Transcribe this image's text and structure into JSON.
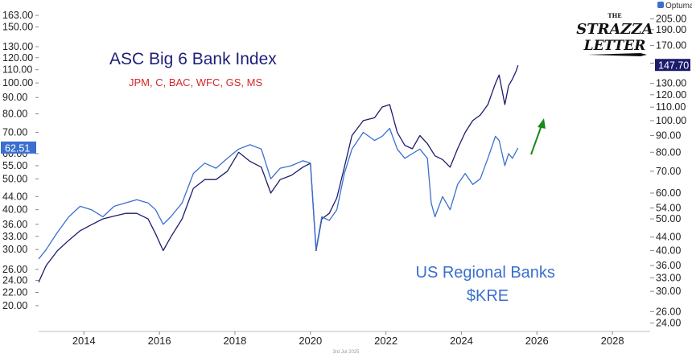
{
  "chart_data": {
    "type": "line",
    "title": "ASC Big 6 Bank Index",
    "subtitle": "JPM, C, BAC, WFC, GS, MS",
    "annotation": "US Regional Banks\n$KRE",
    "brand": "Optuma",
    "logo": "THE STRAZZA LETTER",
    "footer_date": "3rd Jul 2025",
    "scale": "log",
    "grid": false,
    "xlim": [
      2012.8,
      2029.0
    ],
    "x_ticks": [
      "2014",
      "2016",
      "2018",
      "2020",
      "2022",
      "2024",
      "2026",
      "2028"
    ],
    "x_tick_values": [
      2014,
      2016,
      2018,
      2020,
      2022,
      2024,
      2026,
      2028
    ],
    "left_axis": {
      "ylim": [
        18.0,
        165.0
      ],
      "ticks": [
        "163.00",
        "150.00",
        "130.00",
        "120.00",
        "110.00",
        "100.00",
        "90.00",
        "80.00",
        "70.00",
        "60.00",
        "55.00",
        "50.00",
        "44.00",
        "40.00",
        "36.00",
        "33.00",
        "30.00",
        "26.00",
        "24.00",
        "22.00",
        "20.00"
      ],
      "last_value_label": "62.51"
    },
    "right_axis": {
      "ylim": [
        23.0,
        215.0
      ],
      "ticks": [
        "205.00",
        "190.00",
        "170.00",
        "150.00",
        "130.00",
        "120.00",
        "110.00",
        "100.00",
        "90.00",
        "80.00",
        "70.00",
        "60.00",
        "54.00",
        "50.00",
        "44.00",
        "40.00",
        "36.00",
        "33.00",
        "30.00",
        "26.00",
        "24.00"
      ],
      "last_value_label": "147.70"
    },
    "colors": {
      "big6": "#1c1c6e",
      "kre": "#3a6fcf",
      "arrow": "#1a8a1a",
      "subtitle": "#d62728",
      "badge_left": "#3a6fcf",
      "badge_right": "#1c1c6e"
    },
    "series": [
      {
        "name": "ASC Big 6 Bank Index",
        "axis": "right",
        "x": [
          2012.8,
          2013.0,
          2013.3,
          2013.6,
          2013.9,
          2014.2,
          2014.5,
          2014.8,
          2015.1,
          2015.4,
          2015.7,
          2015.9,
          2016.1,
          2016.3,
          2016.6,
          2016.9,
          2017.2,
          2017.5,
          2017.8,
          2018.1,
          2018.4,
          2018.7,
          2018.95,
          2019.2,
          2019.5,
          2019.8,
          2020.0,
          2020.15,
          2020.3,
          2020.5,
          2020.7,
          2020.9,
          2021.1,
          2021.4,
          2021.7,
          2021.9,
          2022.1,
          2022.3,
          2022.5,
          2022.7,
          2022.9,
          2023.1,
          2023.3,
          2023.5,
          2023.7,
          2023.9,
          2024.1,
          2024.3,
          2024.5,
          2024.7,
          2024.9,
          2025.0,
          2025.15,
          2025.25,
          2025.35,
          2025.45,
          2025.5
        ],
        "y": [
          32.0,
          36.0,
          40.0,
          43.0,
          46.0,
          48.0,
          50.0,
          51.0,
          52.0,
          52.0,
          50.0,
          45.0,
          40.0,
          44.0,
          50.0,
          62.0,
          66.0,
          66.0,
          70.0,
          80.0,
          75.0,
          72.0,
          60.0,
          66.0,
          68.0,
          72.0,
          74.0,
          40.0,
          50.0,
          52.0,
          58.0,
          72.0,
          90.0,
          100.0,
          102.0,
          110.0,
          112.0,
          92.0,
          84.0,
          82.0,
          90.0,
          85.0,
          78.0,
          76.0,
          72.0,
          82.0,
          92.0,
          100.0,
          104.0,
          112.0,
          130.0,
          138.0,
          112.0,
          128.0,
          134.0,
          142.0,
          147.7
        ]
      },
      {
        "name": "US Regional Banks $KRE",
        "axis": "left",
        "x": [
          2012.8,
          2013.0,
          2013.3,
          2013.6,
          2013.9,
          2014.2,
          2014.5,
          2014.8,
          2015.1,
          2015.4,
          2015.7,
          2015.9,
          2016.1,
          2016.3,
          2016.6,
          2016.9,
          2017.2,
          2017.5,
          2017.8,
          2018.1,
          2018.4,
          2018.7,
          2018.95,
          2019.2,
          2019.5,
          2019.8,
          2020.0,
          2020.15,
          2020.3,
          2020.5,
          2020.7,
          2020.9,
          2021.1,
          2021.4,
          2021.7,
          2021.9,
          2022.1,
          2022.3,
          2022.5,
          2022.7,
          2022.9,
          2023.1,
          2023.2,
          2023.3,
          2023.5,
          2023.7,
          2023.9,
          2024.1,
          2024.3,
          2024.5,
          2024.7,
          2024.9,
          2025.0,
          2025.15,
          2025.25,
          2025.35,
          2025.45,
          2025.5
        ],
        "y": [
          28.0,
          30.0,
          34.0,
          38.0,
          41.0,
          40.0,
          38.0,
          41.0,
          42.0,
          43.0,
          42.0,
          40.0,
          36.0,
          38.0,
          42.0,
          52.0,
          56.0,
          54.0,
          58.0,
          62.0,
          64.0,
          62.0,
          50.0,
          54.0,
          55.0,
          57.0,
          56.0,
          30.0,
          38.0,
          37.0,
          40.0,
          52.0,
          62.0,
          70.0,
          66.0,
          68.0,
          72.0,
          62.0,
          58.0,
          60.0,
          62.0,
          58.0,
          42.0,
          38.0,
          44.0,
          40.0,
          48.0,
          52.0,
          48.0,
          50.0,
          58.0,
          68.0,
          66.0,
          55.0,
          60.0,
          58.0,
          61.0,
          62.51
        ]
      }
    ]
  }
}
